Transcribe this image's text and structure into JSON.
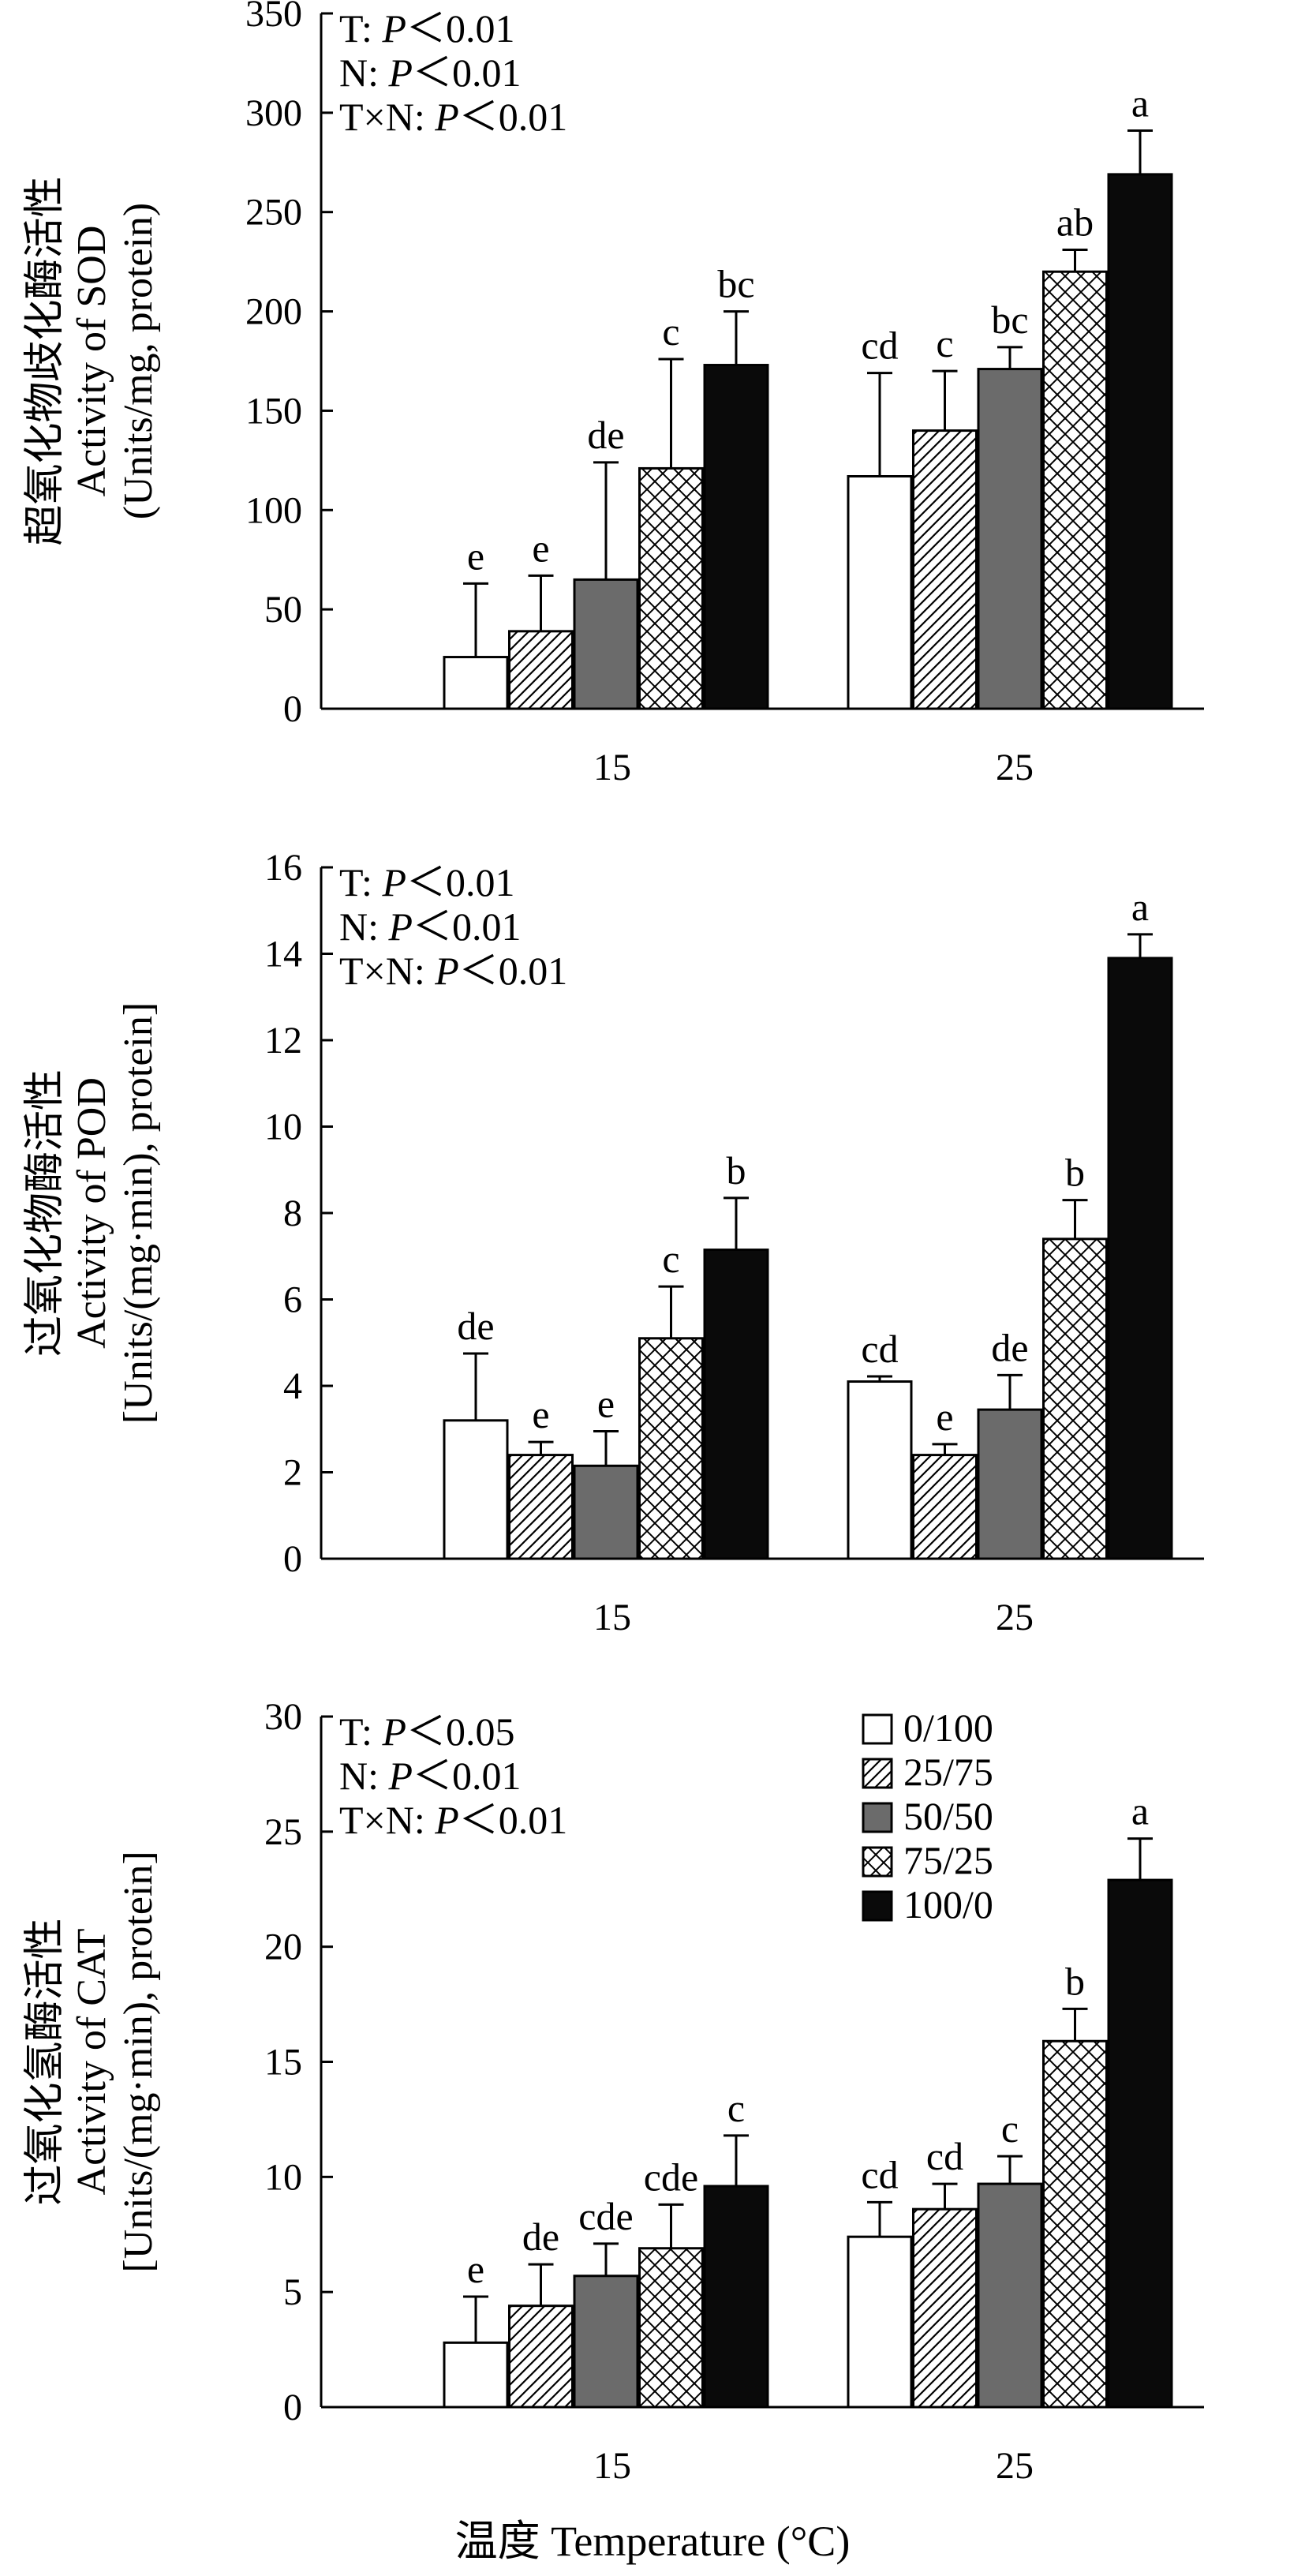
{
  "chart_data": [
    {
      "type": "bar",
      "panel": "SOD",
      "ylabel": [
        "超氧化物歧化酶活性",
        "Activity of SOD",
        "(Units/mg, protein)"
      ],
      "ylim": [
        0,
        350
      ],
      "yticks": [
        0,
        50,
        100,
        150,
        200,
        250,
        300,
        350
      ],
      "categories": [
        "15",
        "25"
      ],
      "stats": [
        {
          "prefix": "T: ",
          "p": "P",
          "rel": "＜0.01"
        },
        {
          "prefix": "N: ",
          "p": "P",
          "rel": "＜0.01"
        },
        {
          "prefix": "T×N: ",
          "p": "P",
          "rel": "＜0.01"
        }
      ],
      "series": [
        {
          "name": "0/100",
          "values": [
            26,
            117
          ],
          "errors": [
            37,
            52
          ],
          "letters": [
            "e",
            "cd"
          ]
        },
        {
          "name": "25/75",
          "values": [
            39,
            140
          ],
          "errors": [
            28,
            30
          ],
          "letters": [
            "e",
            "c"
          ]
        },
        {
          "name": "50/50",
          "values": [
            65,
            171
          ],
          "errors": [
            59,
            11
          ],
          "letters": [
            "de",
            "bc"
          ]
        },
        {
          "name": "75/25",
          "values": [
            121,
            220
          ],
          "errors": [
            55,
            11
          ],
          "letters": [
            "c",
            "ab"
          ]
        },
        {
          "name": "100/0",
          "values": [
            173,
            269
          ],
          "errors": [
            27,
            22
          ],
          "letters": [
            "bc",
            "a"
          ]
        }
      ]
    },
    {
      "type": "bar",
      "panel": "POD",
      "ylabel": [
        "过氧化物酶活性",
        "Activity of POD",
        "[Units/(mg·min), protein]"
      ],
      "ylim": [
        0,
        16
      ],
      "yticks": [
        0,
        2,
        4,
        6,
        8,
        10,
        12,
        14,
        16
      ],
      "categories": [
        "15",
        "25"
      ],
      "stats": [
        {
          "prefix": "T: ",
          "p": "P",
          "rel": "＜0.01"
        },
        {
          "prefix": "N: ",
          "p": "P",
          "rel": "＜0.01"
        },
        {
          "prefix": "T×N: ",
          "p": "P",
          "rel": "＜0.01"
        }
      ],
      "series": [
        {
          "name": "0/100",
          "values": [
            3.2,
            4.1
          ],
          "errors": [
            1.55,
            0.12
          ],
          "letters": [
            "de",
            "cd"
          ]
        },
        {
          "name": "25/75",
          "values": [
            2.4,
            2.4
          ],
          "errors": [
            0.3,
            0.25
          ],
          "letters": [
            "e",
            "e"
          ]
        },
        {
          "name": "50/50",
          "values": [
            2.15,
            3.45
          ],
          "errors": [
            0.8,
            0.8
          ],
          "letters": [
            "e",
            "de"
          ]
        },
        {
          "name": "75/25",
          "values": [
            5.1,
            7.4
          ],
          "errors": [
            1.2,
            0.9
          ],
          "letters": [
            "c",
            "b"
          ]
        },
        {
          "name": "100/0",
          "values": [
            7.15,
            13.9
          ],
          "errors": [
            1.2,
            0.55
          ],
          "letters": [
            "b",
            "a"
          ]
        }
      ]
    },
    {
      "type": "bar",
      "panel": "CAT",
      "ylabel": [
        "过氧化氢酶活性",
        "Activity of CAT",
        "[Units/(mg·min), protein]"
      ],
      "ylim": [
        0,
        30
      ],
      "yticks": [
        0,
        5,
        10,
        15,
        20,
        25,
        30
      ],
      "categories": [
        "15",
        "25"
      ],
      "stats": [
        {
          "prefix": "T: ",
          "p": "P",
          "rel": "＜0.05"
        },
        {
          "prefix": "N: ",
          "p": "P",
          "rel": "＜0.01"
        },
        {
          "prefix": "T×N: ",
          "p": "P",
          "rel": "＜0.01"
        }
      ],
      "series": [
        {
          "name": "0/100",
          "values": [
            2.8,
            7.4
          ],
          "errors": [
            2.0,
            1.5
          ],
          "letters": [
            "e",
            "cd"
          ]
        },
        {
          "name": "25/75",
          "values": [
            4.4,
            8.6
          ],
          "errors": [
            1.8,
            1.1
          ],
          "letters": [
            "de",
            "cd"
          ]
        },
        {
          "name": "50/50",
          "values": [
            5.7,
            9.7
          ],
          "errors": [
            1.4,
            1.2
          ],
          "letters": [
            "cde",
            "c"
          ]
        },
        {
          "name": "75/25",
          "values": [
            6.9,
            15.9
          ],
          "errors": [
            1.9,
            1.4
          ],
          "letters": [
            "cde",
            "b"
          ]
        },
        {
          "name": "100/0",
          "values": [
            9.6,
            22.9
          ],
          "errors": [
            2.2,
            1.8
          ],
          "letters": [
            "c",
            "a"
          ]
        }
      ]
    }
  ],
  "legend": [
    "0/100",
    "25/75",
    "50/50",
    "75/25",
    "100/0"
  ],
  "xlabel": "温度 Temperature (°C)",
  "colors": {
    "s0": "#ffffff",
    "s2": "#6b6b6b",
    "s4": "#0a0a0a",
    "line": "#000000"
  }
}
